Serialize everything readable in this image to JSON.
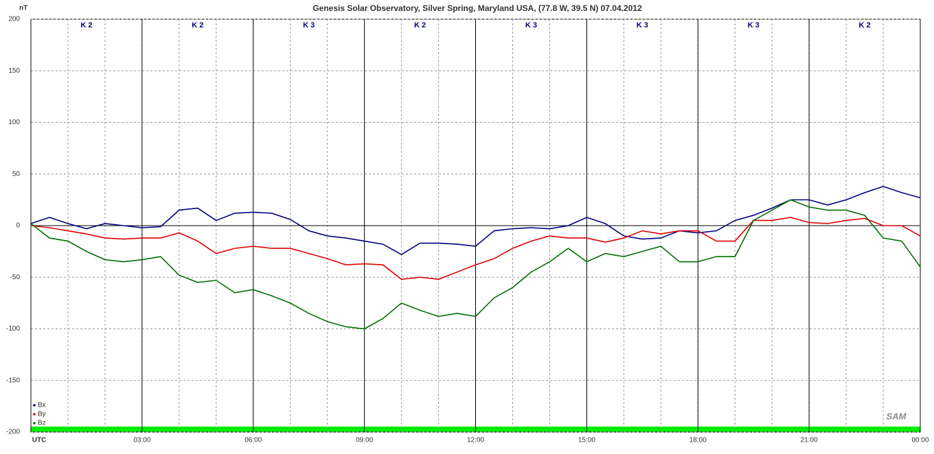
{
  "chart_data": {
    "type": "line",
    "title": "Genesis Solar Observatory, Silver Spring, Maryland USA, (77.8 W, 39.5 N)  07.04.2012",
    "y_label": "nT",
    "logo": "SAM",
    "k_index": [
      "K 2",
      "K 2",
      "K 3",
      "K 2",
      "K 3",
      "K 3",
      "K 3",
      "K 2"
    ],
    "x": [
      0,
      0.5,
      1,
      1.5,
      2,
      2.5,
      3,
      3.5,
      4,
      4.5,
      5,
      5.5,
      6,
      6.5,
      7,
      7.5,
      8,
      8.5,
      9,
      9.5,
      10,
      10.5,
      11,
      11.5,
      12,
      12.5,
      13,
      13.5,
      14,
      14.5,
      15,
      15.5,
      16,
      16.5,
      17,
      17.5,
      18,
      18.5,
      19,
      19.5,
      20,
      20.5,
      21,
      21.5,
      22,
      22.5,
      23,
      23.5,
      24
    ],
    "series": [
      {
        "name": "Bx",
        "color": "#000080",
        "values": [
          2,
          8,
          2,
          -3,
          2,
          0,
          -2,
          -1,
          15,
          17,
          5,
          12,
          13,
          12,
          6,
          -5,
          -10,
          -12,
          -15,
          -18,
          -28,
          -17,
          -17,
          -18,
          -20,
          -5,
          -3,
          -2,
          -3,
          0,
          8,
          2,
          -10,
          -13,
          -12,
          -5,
          -7,
          -5,
          5,
          10,
          17,
          25,
          25,
          20,
          25,
          32,
          38,
          32,
          27
        ]
      },
      {
        "name": "By",
        "color": "#e00000",
        "values": [
          0,
          -2,
          -5,
          -8,
          -12,
          -13,
          -12,
          -12,
          -7,
          -15,
          -27,
          -22,
          -20,
          -22,
          -22,
          -27,
          -32,
          -38,
          -37,
          -38,
          -52,
          -50,
          -52,
          -45,
          -38,
          -32,
          -22,
          -15,
          -10,
          -12,
          -12,
          -16,
          -12,
          -5,
          -8,
          -5,
          -5,
          -15,
          -15,
          5,
          5,
          8,
          3,
          2,
          5,
          7,
          0,
          0,
          -10
        ]
      },
      {
        "name": "Bz",
        "color": "#007000",
        "values": [
          2,
          -12,
          -15,
          -25,
          -33,
          -35,
          -33,
          -30,
          -48,
          -55,
          -53,
          -65,
          -62,
          -68,
          -75,
          -85,
          -93,
          -98,
          -100,
          -90,
          -75,
          -82,
          -88,
          -85,
          -88,
          -70,
          -60,
          -45,
          -35,
          -22,
          -35,
          -27,
          -30,
          -25,
          -20,
          -35,
          -35,
          -30,
          -30,
          5,
          15,
          25,
          18,
          15,
          15,
          10,
          -12,
          -15,
          -40
        ]
      }
    ],
    "xlim": [
      0,
      24
    ],
    "ylim": [
      -200,
      200
    ],
    "xticks": [
      {
        "value": 0,
        "label": "UTC"
      },
      {
        "value": 3,
        "label": "03:00"
      },
      {
        "value": 6,
        "label": "06:00"
      },
      {
        "value": 9,
        "label": "09:00"
      },
      {
        "value": 12,
        "label": "12:00"
      },
      {
        "value": 15,
        "label": "15:00"
      },
      {
        "value": 18,
        "label": "18:00"
      },
      {
        "value": 21,
        "label": "21:00"
      },
      {
        "value": 24,
        "label": "00:00"
      }
    ],
    "yticks": [
      200,
      150,
      100,
      50,
      0,
      -50,
      -100,
      -150,
      -200
    ],
    "grid": true
  }
}
